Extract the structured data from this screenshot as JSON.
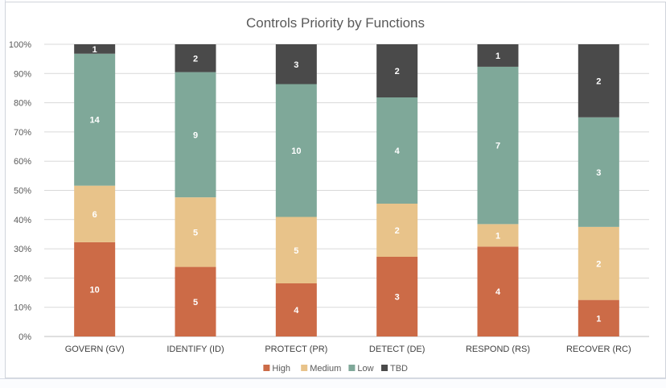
{
  "chart_data": {
    "type": "bar",
    "stacked": "percent",
    "title": "Controls Priority by Functions",
    "categories": [
      "GOVERN (GV)",
      "IDENTIFY (ID)",
      "PROTECT (PR)",
      "DETECT (DE)",
      "RESPOND (RS)",
      "RECOVER (RC)"
    ],
    "series": [
      {
        "name": "High",
        "color": "#cc6b47",
        "values": [
          10,
          5,
          4,
          3,
          4,
          1
        ]
      },
      {
        "name": "Medium",
        "color": "#e8c38a",
        "values": [
          6,
          5,
          5,
          2,
          1,
          2
        ]
      },
      {
        "name": "Low",
        "color": "#7fa899",
        "values": [
          14,
          9,
          10,
          4,
          7,
          3
        ]
      },
      {
        "name": "TBD",
        "color": "#4a4a4a",
        "values": [
          1,
          2,
          3,
          2,
          1,
          2
        ]
      }
    ],
    "y_ticks": [
      "0%",
      "10%",
      "20%",
      "30%",
      "40%",
      "50%",
      "60%",
      "70%",
      "80%",
      "90%",
      "100%"
    ],
    "ylim": [
      0,
      100
    ],
    "grid": true,
    "legend": "bottom"
  }
}
